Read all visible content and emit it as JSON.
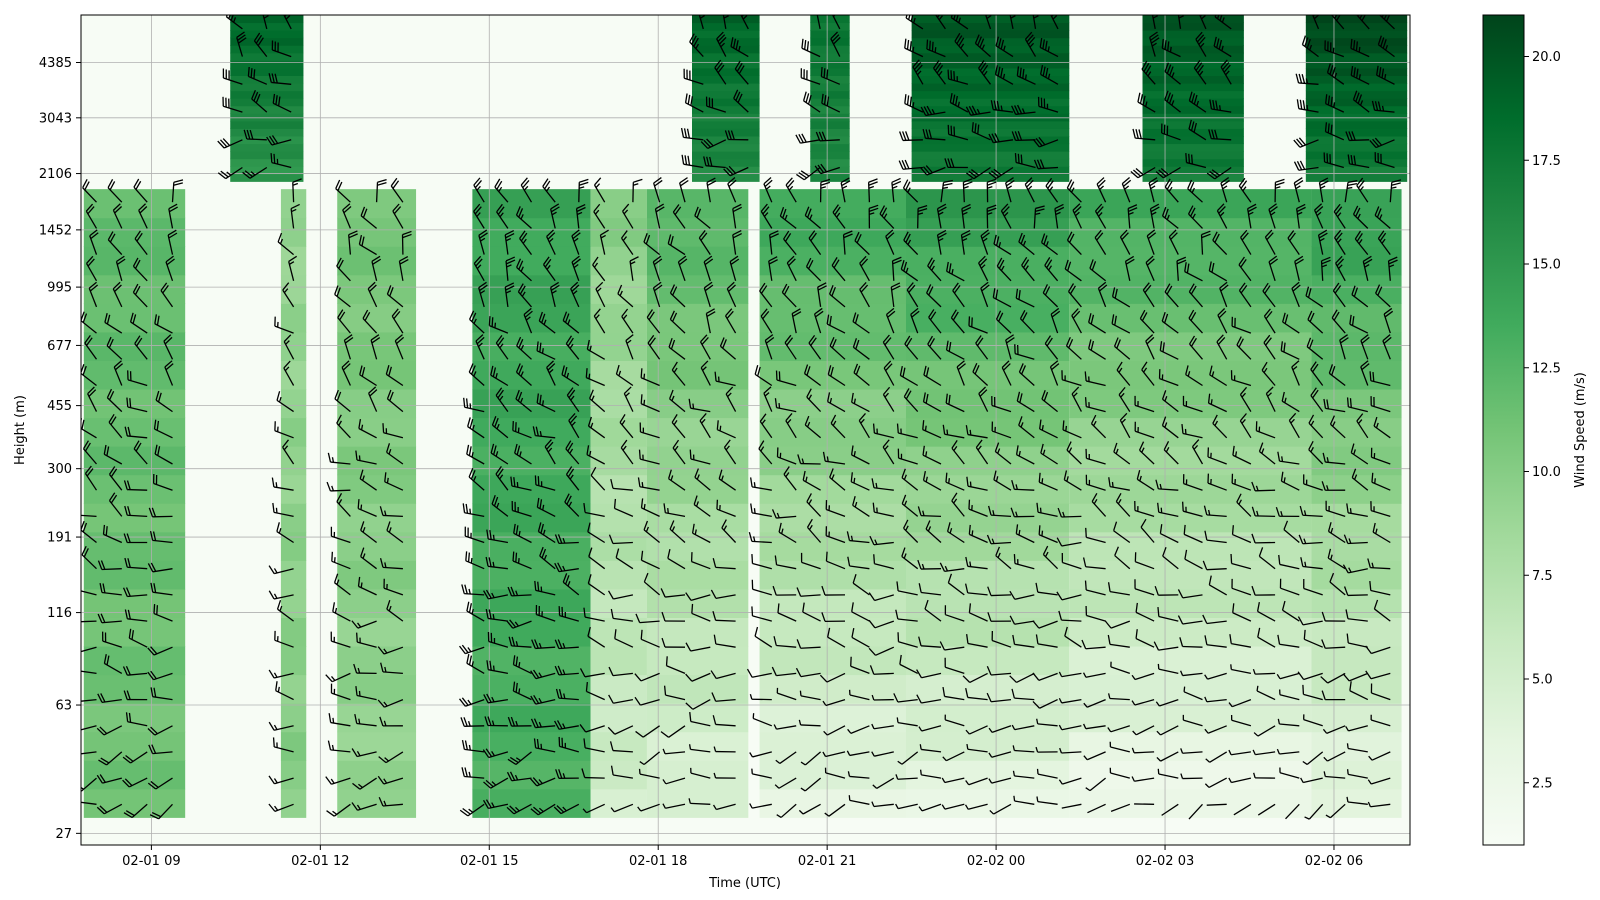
{
  "chart_data": {
    "type": "heatmap",
    "title": "",
    "xlabel": "Time (UTC)",
    "ylabel": "Height (m)",
    "x_ticks": [
      "02-01 09",
      "02-01 12",
      "02-01 15",
      "02-01 18",
      "02-01 21",
      "02-02 00",
      "02-02 03",
      "02-02 06"
    ],
    "x_tick_hours": [
      9,
      12,
      15,
      18,
      21,
      24,
      27,
      30
    ],
    "x_range_hours": [
      7.75,
      31.35
    ],
    "y_scale": "log",
    "y_ticks": [
      27,
      63,
      116,
      191,
      300,
      455,
      677,
      995,
      1452,
      2106,
      3043,
      4385
    ],
    "y_range": [
      25,
      6000
    ],
    "grid": true,
    "colorbar": {
      "label": "Wind Speed (m/s)",
      "ticks": [
        "2.5",
        "5.0",
        "7.5",
        "10.0",
        "12.5",
        "15.0",
        "17.5",
        "20.0"
      ],
      "tick_values": [
        2.5,
        5,
        7.5,
        10,
        12.5,
        15,
        17.5,
        20
      ],
      "range": [
        1,
        21
      ],
      "colormap": "Greens",
      "colors": [
        "#f7fcf5",
        "#e5f5e0",
        "#c7e9c0",
        "#a1d99b",
        "#74c476",
        "#41ab5d",
        "#238b45",
        "#006d2c",
        "#00441b"
      ]
    },
    "overlay": "wind barbs (speed and direction)",
    "data_blocks": [
      {
        "t": [
          7.8,
          9.6
        ],
        "h": [
          30,
          1900
        ],
        "speed_low": 11,
        "speed_high": 12
      },
      {
        "t": [
          10.4,
          11.7
        ],
        "h": [
          2000,
          6000
        ],
        "speed_low": 15,
        "speed_high": 19
      },
      {
        "t": [
          11.3,
          11.75
        ],
        "h": [
          30,
          1900
        ],
        "speed_low": 10,
        "speed_high": 9
      },
      {
        "t": [
          12.3,
          13.7
        ],
        "h": [
          30,
          1900
        ],
        "speed_low": 9,
        "speed_high": 11
      },
      {
        "t": [
          14.7,
          16.8
        ],
        "h": [
          30,
          1900
        ],
        "speed_low": 13,
        "speed_high": 14
      },
      {
        "t": [
          16.8,
          17.8
        ],
        "h": [
          30,
          1900
        ],
        "speed_low": 5,
        "speed_high": 10
      },
      {
        "t": [
          17.8,
          19.6
        ],
        "h": [
          30,
          1900
        ],
        "speed_low": 4,
        "speed_high": 13
      },
      {
        "t": [
          18.6,
          19.8
        ],
        "h": [
          2000,
          6000
        ],
        "speed_low": 16,
        "speed_high": 19
      },
      {
        "t": [
          19.8,
          22.4
        ],
        "h": [
          30,
          1900
        ],
        "speed_low": 3,
        "speed_high": 14
      },
      {
        "t": [
          20.7,
          21.4
        ],
        "h": [
          2000,
          6000
        ],
        "speed_low": 16,
        "speed_high": 18
      },
      {
        "t": [
          22.4,
          25.3
        ],
        "h": [
          30,
          1900
        ],
        "speed_low": 3,
        "speed_high": 15
      },
      {
        "t": [
          22.5,
          25.3
        ],
        "h": [
          2000,
          6000
        ],
        "speed_low": 17,
        "speed_high": 20
      },
      {
        "t": [
          25.3,
          29.6
        ],
        "h": [
          30,
          1900
        ],
        "speed_low": 2,
        "speed_high": 14
      },
      {
        "t": [
          26.6,
          28.4
        ],
        "h": [
          2000,
          6000
        ],
        "speed_low": 17,
        "speed_high": 20
      },
      {
        "t": [
          29.6,
          31.2
        ],
        "h": [
          30,
          1900
        ],
        "speed_low": 3,
        "speed_high": 15
      },
      {
        "t": [
          29.5,
          31.3
        ],
        "h": [
          2000,
          6000
        ],
        "speed_low": 17,
        "speed_high": 21
      }
    ]
  }
}
